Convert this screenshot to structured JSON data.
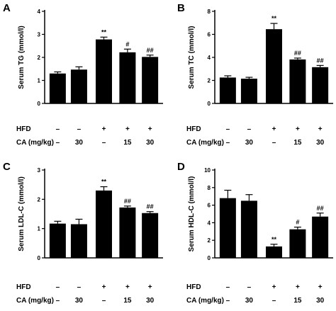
{
  "figure": {
    "conditions": {
      "hfd_label": "HFD",
      "ca_label": "CA (mg/kg)",
      "hfd": [
        "–",
        "–",
        "+",
        "+",
        "+"
      ],
      "ca": [
        "–",
        "30",
        "–",
        "15",
        "30"
      ]
    }
  },
  "chart_data": [
    {
      "panel": "A",
      "type": "bar",
      "ylabel": "Serum TG (mmol/l)",
      "ylim": [
        0,
        4
      ],
      "yticks": [
        "0",
        "1",
        "2",
        "3",
        "4"
      ],
      "values": [
        1.3,
        1.47,
        2.78,
        2.22,
        2.02
      ],
      "errors": [
        0.07,
        0.12,
        0.1,
        0.14,
        0.08
      ],
      "sig": [
        "",
        "",
        "**",
        "#",
        "##"
      ],
      "bar_color": "#000000"
    },
    {
      "panel": "B",
      "type": "bar",
      "ylabel": "Serum TC (mmol/l)",
      "ylim": [
        0,
        8
      ],
      "yticks": [
        "0",
        "2",
        "4",
        "6",
        "8"
      ],
      "values": [
        2.25,
        2.15,
        6.45,
        3.82,
        3.15
      ],
      "errors": [
        0.15,
        0.12,
        0.5,
        0.12,
        0.15
      ],
      "sig": [
        "",
        "",
        "**",
        "##",
        "##"
      ],
      "bar_color": "#000000"
    },
    {
      "panel": "C",
      "type": "bar",
      "ylabel": "Serum LDL-C (mmol/l)",
      "ylim": [
        0,
        3
      ],
      "yticks": [
        "0",
        "1",
        "2",
        "3"
      ],
      "values": [
        1.17,
        1.15,
        2.3,
        1.72,
        1.53
      ],
      "errors": [
        0.08,
        0.17,
        0.13,
        0.05,
        0.05
      ],
      "sig": [
        "",
        "",
        "**",
        "##",
        "##"
      ],
      "bar_color": "#000000"
    },
    {
      "panel": "D",
      "type": "bar",
      "ylabel": "Serum HDL-C (mmol/l)",
      "ylim": [
        0,
        10
      ],
      "yticks": [
        "0",
        "2",
        "4",
        "6",
        "8",
        "10"
      ],
      "values": [
        6.8,
        6.5,
        1.3,
        3.25,
        4.7
      ],
      "errors": [
        0.9,
        0.7,
        0.25,
        0.25,
        0.4
      ],
      "sig": [
        "",
        "",
        "**",
        "#",
        "##"
      ],
      "bar_color": "#000000"
    }
  ]
}
